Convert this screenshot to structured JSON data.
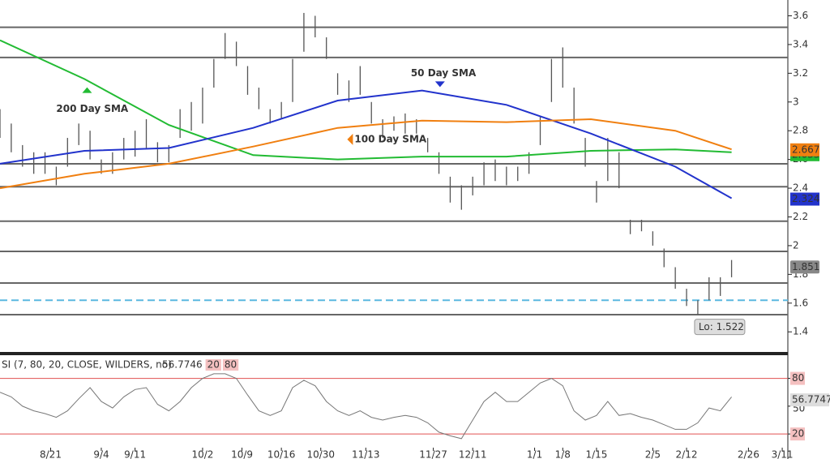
{
  "chart_data": [
    {
      "type": "range-bar",
      "xlim": [
        0,
        140
      ],
      "ylim": [
        1.26,
        3.71
      ],
      "yticks": [
        1.4,
        1.6,
        1.8,
        2,
        2.2,
        2.4,
        2.6,
        2.8,
        3,
        3.2,
        3.4,
        3.6
      ],
      "bars": {
        "color": "#555555",
        "x": [
          0,
          2,
          4,
          6,
          8,
          10,
          12,
          14,
          16,
          18,
          20,
          22,
          24,
          26,
          28,
          30,
          32,
          34,
          36,
          38,
          40,
          42,
          44,
          46,
          48,
          50,
          52,
          54,
          56,
          58,
          60,
          62,
          64,
          66,
          68,
          70,
          72,
          74,
          76,
          78,
          80,
          82,
          84,
          86,
          88,
          90,
          92,
          94,
          96,
          98,
          100,
          102,
          104,
          106,
          108,
          110,
          112,
          114,
          116,
          118,
          120,
          122,
          124,
          126,
          128,
          130
        ],
        "high": [
          2.95,
          2.85,
          2.7,
          2.65,
          2.65,
          2.55,
          2.75,
          2.85,
          2.8,
          2.6,
          2.65,
          2.75,
          2.8,
          2.88,
          2.72,
          2.7,
          2.95,
          3.0,
          3.1,
          3.3,
          3.48,
          3.42,
          3.25,
          3.1,
          2.95,
          3.0,
          3.3,
          3.62,
          3.6,
          3.45,
          3.2,
          3.15,
          3.25,
          3.0,
          2.88,
          2.9,
          2.92,
          2.88,
          2.75,
          2.65,
          2.48,
          2.42,
          2.48,
          2.58,
          2.6,
          2.55,
          2.55,
          2.65,
          2.9,
          3.3,
          3.38,
          3.1,
          2.75,
          2.45,
          2.75,
          2.65,
          2.18,
          2.18,
          2.1,
          1.98,
          1.85,
          1.7,
          1.62,
          1.78,
          1.78,
          1.9
        ],
        "low": [
          2.75,
          2.65,
          2.55,
          2.5,
          2.5,
          2.42,
          2.55,
          2.7,
          2.6,
          2.5,
          2.5,
          2.6,
          2.62,
          2.68,
          2.58,
          2.58,
          2.75,
          2.8,
          2.85,
          3.1,
          3.3,
          3.25,
          3.05,
          2.95,
          2.85,
          2.88,
          3.0,
          3.35,
          3.45,
          3.3,
          3.05,
          3.0,
          3.05,
          2.85,
          2.75,
          2.8,
          2.78,
          2.78,
          2.65,
          2.5,
          2.3,
          2.25,
          2.35,
          2.42,
          2.45,
          2.42,
          2.45,
          2.5,
          2.7,
          3.0,
          3.1,
          2.85,
          2.55,
          2.3,
          2.45,
          2.4,
          2.08,
          2.1,
          2.0,
          1.85,
          1.7,
          1.58,
          1.52,
          1.62,
          1.65,
          1.78
        ]
      },
      "series": [
        {
          "name": "200 Day SMA",
          "color": "#22bb33",
          "x": [
            0,
            15,
            30,
            45,
            60,
            75,
            90,
            105,
            120,
            130
          ],
          "values": [
            3.43,
            3.16,
            2.84,
            2.63,
            2.6,
            2.62,
            2.62,
            2.66,
            2.67,
            2.65
          ],
          "last": 2.633,
          "note_at": [
            10,
            2.95
          ]
        },
        {
          "name": "50 Day SMA",
          "color": "#2233cc",
          "x": [
            0,
            15,
            30,
            45,
            60,
            75,
            90,
            105,
            120,
            130
          ],
          "values": [
            2.57,
            2.66,
            2.68,
            2.82,
            3.01,
            3.08,
            2.98,
            2.78,
            2.55,
            2.33
          ],
          "last": 2.324,
          "note_at": [
            73,
            3.2
          ]
        },
        {
          "name": "100  Day SMA",
          "color": "#f07f10",
          "x": [
            0,
            15,
            30,
            45,
            60,
            75,
            90,
            105,
            120,
            130
          ],
          "values": [
            2.4,
            2.5,
            2.57,
            2.69,
            2.82,
            2.87,
            2.86,
            2.88,
            2.8,
            2.67
          ],
          "last": 2.667,
          "note_at": [
            63,
            2.74
          ]
        }
      ],
      "levels": [
        3.52,
        3.31,
        2.57,
        2.41,
        2.17,
        1.96,
        1.74,
        1.52
      ],
      "support": 1.62,
      "last_price": 1.851,
      "low": {
        "value": 1.522,
        "label": "Lo: 1.522"
      }
    },
    {
      "type": "line",
      "title": "SI (7, 80, 20, CLOSE, WILDERS, no)",
      "header_value": 56.7746,
      "levels": [
        20,
        80
      ],
      "xlim": [
        0,
        140
      ],
      "ylim": [
        7,
        105
      ],
      "yticks": [
        20,
        50,
        80
      ],
      "xticks": [
        {
          "value": 9,
          "label": "8/21"
        },
        {
          "value": 18,
          "label": "9/4"
        },
        {
          "value": 24,
          "label": "9/11"
        },
        {
          "value": 36,
          "label": "10/2"
        },
        {
          "value": 43,
          "label": "10/9"
        },
        {
          "value": 50,
          "label": "10/16"
        },
        {
          "value": 57,
          "label": "10/30"
        },
        {
          "value": 65,
          "label": "11/13"
        },
        {
          "value": 77,
          "label": "11/27"
        },
        {
          "value": 84,
          "label": "12/11"
        },
        {
          "value": 95,
          "label": "1/1"
        },
        {
          "value": 100,
          "label": "1/8"
        },
        {
          "value": 106,
          "label": "1/15"
        },
        {
          "value": 116,
          "label": "2/5"
        },
        {
          "value": 122,
          "label": "2/12"
        },
        {
          "value": 133,
          "label": "2/26"
        },
        {
          "value": 139,
          "label": "3/11"
        }
      ],
      "series": [
        {
          "color": "#777777",
          "x": [
            0,
            2,
            4,
            6,
            8,
            10,
            12,
            14,
            16,
            18,
            20,
            22,
            24,
            26,
            28,
            30,
            32,
            34,
            36,
            38,
            40,
            42,
            44,
            46,
            48,
            50,
            52,
            54,
            56,
            58,
            60,
            62,
            64,
            66,
            68,
            70,
            72,
            74,
            76,
            78,
            80,
            82,
            84,
            86,
            88,
            90,
            92,
            94,
            96,
            98,
            100,
            102,
            104,
            106,
            108,
            110,
            112,
            114,
            116,
            118,
            120,
            122,
            124,
            126,
            128,
            130
          ],
          "values": [
            65,
            60,
            50,
            45,
            42,
            38,
            45,
            58,
            70,
            55,
            48,
            60,
            68,
            70,
            52,
            45,
            55,
            70,
            80,
            85,
            85,
            80,
            62,
            45,
            40,
            45,
            70,
            78,
            72,
            55,
            45,
            40,
            45,
            38,
            35,
            38,
            40,
            38,
            32,
            22,
            18,
            15,
            35,
            55,
            65,
            55,
            55,
            65,
            75,
            80,
            72,
            45,
            35,
            40,
            55,
            40,
            42,
            38,
            35,
            30,
            25,
            25,
            32,
            48,
            45,
            60
          ],
          "last": 56.7747
        }
      ]
    }
  ]
}
